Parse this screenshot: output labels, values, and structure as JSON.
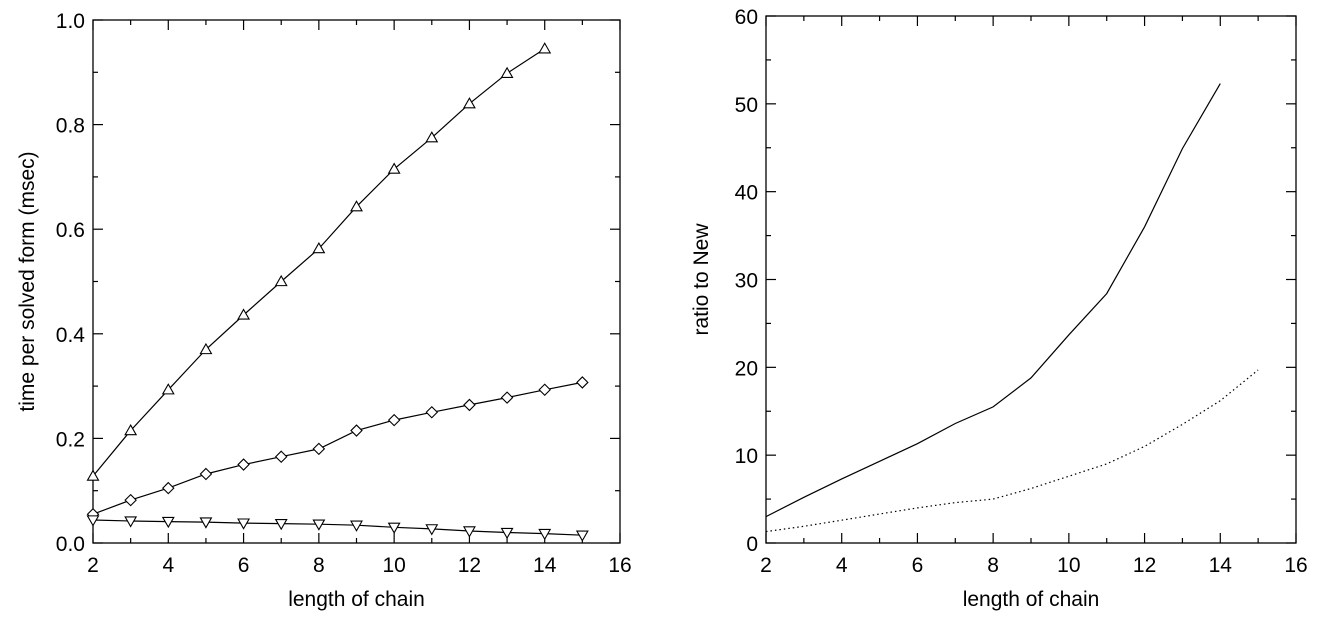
{
  "chart_data": [
    {
      "type": "line",
      "title": "",
      "xlabel": "length of chain",
      "ylabel": "time per solved form (msec)",
      "xlim": [
        2,
        16
      ],
      "ylim": [
        0.0,
        1.0
      ],
      "xticks": [
        2,
        4,
        6,
        8,
        10,
        12,
        14,
        16
      ],
      "yticks": [
        0.0,
        0.2,
        0.4,
        0.6,
        0.8,
        1.0
      ],
      "ytick_labels": [
        "0.0",
        "0.2",
        "0.4",
        "0.6",
        "0.8",
        "1.0"
      ],
      "grid": false,
      "series": [
        {
          "marker": "triangle-up",
          "style": "solid",
          "x": [
            2,
            3,
            4,
            5,
            6,
            7,
            8,
            9,
            10,
            11,
            12,
            13,
            14
          ],
          "values": [
            0.128,
            0.215,
            0.293,
            0.37,
            0.436,
            0.5,
            0.563,
            0.643,
            0.715,
            0.775,
            0.84,
            0.898,
            0.945
          ]
        },
        {
          "marker": "diamond",
          "style": "solid",
          "x": [
            2,
            3,
            4,
            5,
            6,
            7,
            8,
            9,
            10,
            11,
            12,
            13,
            14,
            15
          ],
          "values": [
            0.055,
            0.082,
            0.105,
            0.132,
            0.15,
            0.165,
            0.18,
            0.215,
            0.235,
            0.25,
            0.264,
            0.278,
            0.293,
            0.307
          ]
        },
        {
          "marker": "triangle-down",
          "style": "solid",
          "x": [
            2,
            3,
            4,
            5,
            6,
            7,
            8,
            9,
            10,
            11,
            12,
            13,
            14,
            15
          ],
          "values": [
            0.044,
            0.042,
            0.041,
            0.04,
            0.038,
            0.037,
            0.036,
            0.034,
            0.03,
            0.027,
            0.023,
            0.02,
            0.018,
            0.015
          ]
        }
      ]
    },
    {
      "type": "line",
      "title": "",
      "xlabel": "length of chain",
      "ylabel": "ratio to New",
      "xlim": [
        2,
        16
      ],
      "ylim": [
        0,
        60
      ],
      "xticks": [
        2,
        4,
        6,
        8,
        10,
        12,
        14,
        16
      ],
      "yticks": [
        0,
        10,
        20,
        30,
        40,
        50,
        60
      ],
      "ytick_labels": [
        "0",
        "10",
        "20",
        "30",
        "40",
        "50",
        "60"
      ],
      "grid": false,
      "series": [
        {
          "marker": "none",
          "style": "solid",
          "x": [
            2,
            3,
            4,
            5,
            6,
            7,
            8,
            9,
            10,
            11,
            12,
            13,
            14
          ],
          "values": [
            3.0,
            5.2,
            7.3,
            9.3,
            11.3,
            13.6,
            15.5,
            18.8,
            23.7,
            28.4,
            36.0,
            44.9,
            52.3
          ]
        },
        {
          "marker": "none",
          "style": "dotted",
          "x": [
            2,
            3,
            4,
            5,
            6,
            7,
            8,
            9,
            10,
            11,
            12,
            13,
            14,
            15
          ],
          "values": [
            1.3,
            1.9,
            2.6,
            3.3,
            4.0,
            4.6,
            5.0,
            6.2,
            7.6,
            9.0,
            11.0,
            13.5,
            16.2,
            19.7
          ]
        }
      ]
    }
  ]
}
